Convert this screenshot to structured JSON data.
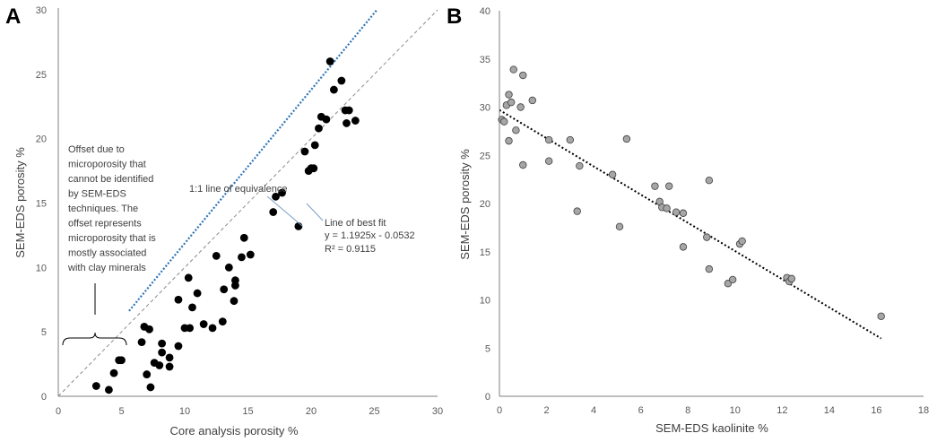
{
  "chart_data": [
    {
      "panel_label": "A",
      "type": "scatter",
      "xlabel": "Core analysis porosity %",
      "ylabel": "SEM-EDS porosity %",
      "xlim": [
        0,
        30
      ],
      "ylim": [
        0,
        30
      ],
      "xticks": [
        "0",
        "5",
        "10",
        "15",
        "20",
        "25",
        "30"
      ],
      "yticks": [
        "0",
        "5",
        "10",
        "15",
        "20",
        "25",
        "30"
      ],
      "grid": false,
      "reference_line": {
        "name": "1:1 line of equivalence",
        "slope": 1,
        "intercept": 0
      },
      "fit_line": {
        "name": "Line of best fit",
        "equation": "y = 1.1925x - 0.0532",
        "r2": "R² = 0.9115",
        "slope": 1.1925,
        "intercept": -0.0532,
        "x_range": [
          5.6,
          25.2
        ]
      },
      "annotations": {
        "equivalence_label": "1:1 line of equivalence",
        "fit_label": "Line of best fit",
        "fit_equation": "y = 1.1925x - 0.0532",
        "fit_r2": "R² = 0.9115",
        "offset_note": [
          "Offset due to",
          "microporosity that",
          "cannot be identified",
          "by SEM-EDS",
          "techniques. The",
          "offset represents",
          "microporosity that is",
          "mostly associated",
          "with clay minerals"
        ]
      },
      "points": [
        {
          "x": 3.0,
          "y": 0.8
        },
        {
          "x": 4.0,
          "y": 0.5
        },
        {
          "x": 4.4,
          "y": 1.8
        },
        {
          "x": 4.8,
          "y": 2.8
        },
        {
          "x": 5.0,
          "y": 2.8
        },
        {
          "x": 6.6,
          "y": 4.2
        },
        {
          "x": 6.8,
          "y": 5.4
        },
        {
          "x": 7.2,
          "y": 5.2
        },
        {
          "x": 7.0,
          "y": 1.7
        },
        {
          "x": 7.3,
          "y": 0.7
        },
        {
          "x": 7.6,
          "y": 2.6
        },
        {
          "x": 8.0,
          "y": 2.4
        },
        {
          "x": 8.2,
          "y": 3.4
        },
        {
          "x": 8.2,
          "y": 4.1
        },
        {
          "x": 8.8,
          "y": 2.3
        },
        {
          "x": 8.8,
          "y": 3.0
        },
        {
          "x": 9.5,
          "y": 3.9
        },
        {
          "x": 9.5,
          "y": 7.5
        },
        {
          "x": 10.0,
          "y": 5.3
        },
        {
          "x": 10.3,
          "y": 9.2
        },
        {
          "x": 10.4,
          "y": 5.3
        },
        {
          "x": 10.6,
          "y": 6.9
        },
        {
          "x": 11.0,
          "y": 8.0
        },
        {
          "x": 11.5,
          "y": 5.6
        },
        {
          "x": 12.2,
          "y": 5.3
        },
        {
          "x": 12.5,
          "y": 10.9
        },
        {
          "x": 13.0,
          "y": 5.8
        },
        {
          "x": 13.1,
          "y": 8.3
        },
        {
          "x": 13.5,
          "y": 10.0
        },
        {
          "x": 13.9,
          "y": 7.4
        },
        {
          "x": 14.0,
          "y": 8.6
        },
        {
          "x": 14.0,
          "y": 9.0
        },
        {
          "x": 14.5,
          "y": 10.8
        },
        {
          "x": 14.7,
          "y": 12.3
        },
        {
          "x": 15.2,
          "y": 11.0
        },
        {
          "x": 17.0,
          "y": 14.3
        },
        {
          "x": 17.2,
          "y": 15.5
        },
        {
          "x": 17.7,
          "y": 15.8
        },
        {
          "x": 19.0,
          "y": 13.2
        },
        {
          "x": 19.5,
          "y": 19.0
        },
        {
          "x": 19.8,
          "y": 17.5
        },
        {
          "x": 20.0,
          "y": 17.7
        },
        {
          "x": 20.2,
          "y": 17.7
        },
        {
          "x": 20.3,
          "y": 19.5
        },
        {
          "x": 20.6,
          "y": 20.8
        },
        {
          "x": 20.8,
          "y": 21.7
        },
        {
          "x": 21.2,
          "y": 21.5
        },
        {
          "x": 21.5,
          "y": 26.0
        },
        {
          "x": 21.8,
          "y": 23.8
        },
        {
          "x": 22.4,
          "y": 24.5
        },
        {
          "x": 22.7,
          "y": 22.2
        },
        {
          "x": 22.8,
          "y": 21.2
        },
        {
          "x": 23.0,
          "y": 22.2
        },
        {
          "x": 23.5,
          "y": 21.4
        }
      ]
    },
    {
      "panel_label": "B",
      "type": "scatter",
      "xlabel": "SEM-EDS kaolinite %",
      "ylabel": "SEM-EDS porosity %",
      "xlim": [
        0,
        18
      ],
      "ylim": [
        0,
        40
      ],
      "xticks": [
        "0",
        "2",
        "4",
        "6",
        "8",
        "10",
        "12",
        "14",
        "16",
        "18"
      ],
      "yticks": [
        "0",
        "5",
        "10",
        "15",
        "20",
        "25",
        "30",
        "35",
        "40"
      ],
      "grid": false,
      "trend_line": {
        "style": "dotted",
        "start": [
          0.0,
          29.7
        ],
        "end": [
          16.2,
          6.0
        ]
      },
      "points": [
        {
          "x": 0.1,
          "y": 28.7
        },
        {
          "x": 0.2,
          "y": 28.5
        },
        {
          "x": 0.3,
          "y": 30.2
        },
        {
          "x": 0.4,
          "y": 26.5
        },
        {
          "x": 0.4,
          "y": 31.3
        },
        {
          "x": 0.5,
          "y": 30.5
        },
        {
          "x": 0.6,
          "y": 33.9
        },
        {
          "x": 0.7,
          "y": 27.6
        },
        {
          "x": 0.9,
          "y": 30.0
        },
        {
          "x": 1.0,
          "y": 33.3
        },
        {
          "x": 1.0,
          "y": 24.0
        },
        {
          "x": 1.4,
          "y": 30.7
        },
        {
          "x": 2.1,
          "y": 26.6
        },
        {
          "x": 2.1,
          "y": 24.4
        },
        {
          "x": 3.0,
          "y": 26.6
        },
        {
          "x": 3.3,
          "y": 19.2
        },
        {
          "x": 3.4,
          "y": 23.9
        },
        {
          "x": 4.8,
          "y": 23.0
        },
        {
          "x": 5.1,
          "y": 17.6
        },
        {
          "x": 5.4,
          "y": 26.7
        },
        {
          "x": 6.6,
          "y": 21.8
        },
        {
          "x": 6.8,
          "y": 20.2
        },
        {
          "x": 6.9,
          "y": 19.6
        },
        {
          "x": 7.1,
          "y": 19.5
        },
        {
          "x": 7.2,
          "y": 21.8
        },
        {
          "x": 7.5,
          "y": 19.1
        },
        {
          "x": 7.8,
          "y": 15.5
        },
        {
          "x": 7.8,
          "y": 19.0
        },
        {
          "x": 8.8,
          "y": 16.5
        },
        {
          "x": 8.9,
          "y": 22.4
        },
        {
          "x": 8.9,
          "y": 13.2
        },
        {
          "x": 9.7,
          "y": 11.7
        },
        {
          "x": 9.9,
          "y": 12.1
        },
        {
          "x": 10.2,
          "y": 15.8
        },
        {
          "x": 10.3,
          "y": 16.1
        },
        {
          "x": 12.2,
          "y": 12.3
        },
        {
          "x": 12.3,
          "y": 11.9
        },
        {
          "x": 12.4,
          "y": 12.2
        },
        {
          "x": 16.2,
          "y": 8.3
        }
      ]
    }
  ]
}
